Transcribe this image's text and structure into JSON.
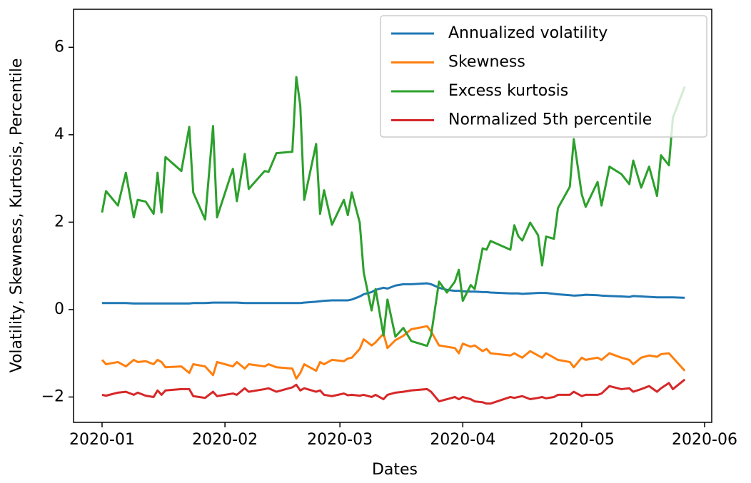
{
  "chart_data": {
    "type": "line",
    "xlabel": "Dates",
    "ylabel": "Volatility, Skewness, Kurtosis, Percentile",
    "x": [
      0,
      1,
      4,
      6,
      8,
      9,
      11,
      13,
      14,
      15,
      16,
      20,
      22,
      23,
      26,
      28,
      29,
      33,
      34,
      36,
      37,
      41,
      42,
      44,
      48,
      49,
      50,
      51,
      54,
      55,
      56,
      58,
      61,
      62,
      63,
      65,
      66,
      68,
      69,
      71,
      72,
      74,
      76,
      78,
      82,
      83,
      85,
      87,
      89,
      90,
      91,
      93,
      94,
      96,
      97,
      98,
      103,
      104,
      105,
      106,
      108,
      110,
      111,
      112,
      114,
      115,
      118,
      119,
      121,
      122,
      125,
      126,
      128,
      131,
      133,
      134,
      136,
      138,
      140,
      141,
      143,
      144,
      147
    ],
    "series": [
      {
        "name": "Annualized volatility",
        "color": "#1f77b4",
        "values": [
          0.15,
          0.15,
          0.15,
          0.15,
          0.14,
          0.14,
          0.14,
          0.14,
          0.14,
          0.14,
          0.14,
          0.14,
          0.14,
          0.15,
          0.15,
          0.16,
          0.16,
          0.16,
          0.16,
          0.15,
          0.15,
          0.15,
          0.15,
          0.15,
          0.15,
          0.15,
          0.15,
          0.16,
          0.18,
          0.19,
          0.2,
          0.21,
          0.21,
          0.21,
          0.23,
          0.3,
          0.35,
          0.4,
          0.45,
          0.5,
          0.48,
          0.55,
          0.58,
          0.58,
          0.6,
          0.58,
          0.5,
          0.45,
          0.43,
          0.43,
          0.42,
          0.41,
          0.41,
          0.4,
          0.4,
          0.39,
          0.37,
          0.37,
          0.37,
          0.36,
          0.37,
          0.38,
          0.38,
          0.38,
          0.36,
          0.35,
          0.33,
          0.32,
          0.33,
          0.34,
          0.33,
          0.32,
          0.31,
          0.3,
          0.29,
          0.31,
          0.3,
          0.29,
          0.28,
          0.28,
          0.28,
          0.28,
          0.27
        ]
      },
      {
        "name": "Skewness",
        "color": "#ff7f0e",
        "values": [
          -1.15,
          -1.25,
          -1.2,
          -1.3,
          -1.15,
          -1.2,
          -1.18,
          -1.25,
          -1.15,
          -1.2,
          -1.32,
          -1.3,
          -1.45,
          -1.25,
          -1.3,
          -1.5,
          -1.2,
          -1.3,
          -1.2,
          -1.35,
          -1.25,
          -1.3,
          -1.25,
          -1.32,
          -1.35,
          -1.58,
          -1.45,
          -1.25,
          -1.4,
          -1.2,
          -1.25,
          -1.15,
          -1.18,
          -1.12,
          -1.1,
          -0.9,
          -0.68,
          -0.82,
          -0.75,
          -0.55,
          -0.88,
          -0.7,
          -0.6,
          -0.45,
          -0.38,
          -0.5,
          -0.82,
          -0.85,
          -0.88,
          -1.0,
          -0.78,
          -0.85,
          -0.82,
          -0.95,
          -0.9,
          -1.0,
          -1.05,
          -1.0,
          -1.05,
          -1.1,
          -0.95,
          -1.05,
          -1.1,
          -1.0,
          -1.1,
          -1.15,
          -1.2,
          -1.32,
          -1.1,
          -1.15,
          -1.1,
          -1.15,
          -1.0,
          -1.1,
          -1.15,
          -1.25,
          -1.1,
          -1.05,
          -1.08,
          -1.02,
          -1.0,
          -1.1,
          -1.4
        ]
      },
      {
        "name": "Excess kurtosis",
        "color": "#2ca02c",
        "values": [
          2.22,
          2.71,
          2.38,
          3.13,
          2.11,
          2.51,
          2.47,
          2.19,
          3.13,
          2.22,
          3.49,
          3.17,
          4.18,
          2.68,
          2.06,
          4.2,
          2.11,
          3.22,
          2.48,
          3.56,
          2.76,
          3.17,
          3.15,
          3.58,
          3.61,
          5.32,
          4.67,
          2.51,
          3.79,
          2.19,
          2.73,
          1.94,
          2.51,
          2.16,
          2.68,
          1.99,
          0.85,
          -0.02,
          0.47,
          -0.59,
          0.23,
          -0.62,
          -0.42,
          -0.72,
          -0.83,
          -0.59,
          0.64,
          0.39,
          0.64,
          0.91,
          0.2,
          0.56,
          0.47,
          1.4,
          1.37,
          1.57,
          1.37,
          1.93,
          1.68,
          1.58,
          1.99,
          1.7,
          1.01,
          1.67,
          1.62,
          2.32,
          2.81,
          3.9,
          2.64,
          2.35,
          2.92,
          2.38,
          3.27,
          3.1,
          2.87,
          3.41,
          2.79,
          3.27,
          2.6,
          3.53,
          3.3,
          4.39,
          5.1
        ]
      },
      {
        "name": "Normalized 5th percentile",
        "color": "#d62728",
        "values": [
          -1.95,
          -1.97,
          -1.9,
          -1.88,
          -1.95,
          -1.9,
          -1.97,
          -2.0,
          -1.85,
          -1.95,
          -1.85,
          -1.82,
          -1.82,
          -1.98,
          -2.02,
          -1.88,
          -1.98,
          -1.92,
          -1.95,
          -1.8,
          -1.88,
          -1.82,
          -1.8,
          -1.88,
          -1.78,
          -1.72,
          -1.85,
          -1.8,
          -1.88,
          -1.85,
          -1.95,
          -1.98,
          -1.92,
          -1.96,
          -1.95,
          -1.97,
          -1.95,
          -2.0,
          -1.95,
          -2.05,
          -1.95,
          -1.9,
          -1.88,
          -1.85,
          -1.82,
          -1.88,
          -2.1,
          -2.05,
          -2.0,
          -2.05,
          -2.0,
          -2.05,
          -2.1,
          -2.12,
          -2.15,
          -2.15,
          -2.0,
          -2.02,
          -2.0,
          -1.98,
          -2.05,
          -2.02,
          -2.0,
          -2.03,
          -2.0,
          -1.95,
          -1.95,
          -1.88,
          -1.98,
          -1.95,
          -1.95,
          -1.92,
          -1.75,
          -1.82,
          -1.8,
          -1.88,
          -1.82,
          -1.75,
          -1.88,
          -1.8,
          -1.68,
          -1.82,
          -1.6
        ]
      }
    ],
    "xlim": [
      -7.2,
      153.8
    ],
    "xticks": [
      {
        "value": 0,
        "label": "2020-01"
      },
      {
        "value": 31,
        "label": "2020-02"
      },
      {
        "value": 60,
        "label": "2020-03"
      },
      {
        "value": 91,
        "label": "2020-04"
      },
      {
        "value": 121,
        "label": "2020-05"
      },
      {
        "value": 152,
        "label": "2020-06"
      }
    ],
    "ylim": [
      -2.58,
      6.87
    ],
    "yticks": [
      {
        "value": -2,
        "label": "−2"
      },
      0,
      2,
      4,
      6
    ],
    "grid": false,
    "legend": "upper right"
  }
}
